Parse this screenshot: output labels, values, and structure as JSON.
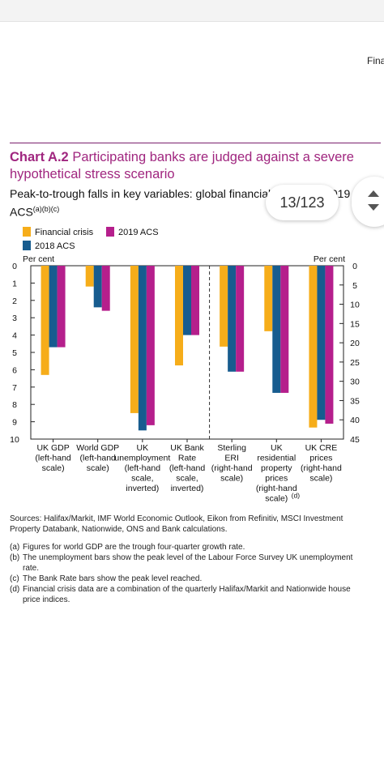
{
  "header_crop_text": "Fina",
  "title": {
    "prefix": "Chart A.2",
    "text": "Participating banks are judged against a severe hypothetical stress scenario"
  },
  "subtitle": {
    "text": "Peak-to-trough falls in key variables: global financial crisis and 2019 ACS",
    "notes": "(a)(b)(c)"
  },
  "page_indicator": "13/123",
  "colors": {
    "financial_crisis": "#f6ad1a",
    "acs_2018": "#175c8f",
    "acs_2019": "#b51f8c",
    "title": "#a0267f"
  },
  "chart_data": {
    "type": "bar",
    "legend": [
      "Financial crisis",
      "2019 ACS",
      "2018 ACS"
    ],
    "left_axis": {
      "label": "Per cent",
      "ticks": [
        "0",
        "1",
        "2",
        "3",
        "4",
        "5",
        "6",
        "7",
        "8",
        "9",
        "10"
      ],
      "range": [
        0,
        10
      ],
      "inverted": true
    },
    "right_axis": {
      "label": "Per cent",
      "ticks": [
        "0",
        "5",
        "10",
        "15",
        "20",
        "25",
        "30",
        "35",
        "40",
        "45"
      ],
      "range": [
        0,
        45
      ],
      "inverted": true
    },
    "categories": [
      {
        "label": [
          "UK GDP",
          "(left-hand",
          "scale)"
        ],
        "axis": "left",
        "sup": "",
        "values": {
          "fc": 6.3,
          "acs2018": 4.7,
          "acs2019": 4.7
        }
      },
      {
        "label": [
          "World GDP",
          "(left-hand",
          "scale)"
        ],
        "axis": "left",
        "sup": "",
        "values": {
          "fc": 1.2,
          "acs2018": 2.4,
          "acs2019": 2.6
        }
      },
      {
        "label": [
          "UK",
          "unemployment",
          "(left-hand",
          "scale,",
          "inverted)"
        ],
        "axis": "left",
        "sup": "",
        "values": {
          "fc": 8.5,
          "acs2018": 9.5,
          "acs2019": 9.2
        }
      },
      {
        "label": [
          "UK Bank",
          "Rate",
          "(left-hand",
          "scale,",
          "inverted)"
        ],
        "axis": "left",
        "sup": "",
        "values": {
          "fc": 5.75,
          "acs2018": 4.0,
          "acs2019": 4.0
        }
      },
      {
        "label": [
          "Sterling",
          "ERI",
          "(right-hand",
          "scale)"
        ],
        "axis": "right",
        "sup": "",
        "values": {
          "fc": 21.0,
          "acs2018": 27.5,
          "acs2019": 27.5
        }
      },
      {
        "label": [
          "UK",
          "residential",
          "property",
          "prices",
          "(right-hand",
          "scale)"
        ],
        "axis": "right",
        "sup": "(d)",
        "values": {
          "fc": 17.0,
          "acs2018": 33.0,
          "acs2019": 33.0
        }
      },
      {
        "label": [
          "UK CRE",
          "prices",
          "(right-hand",
          "scale)"
        ],
        "axis": "right",
        "sup": "",
        "values": {
          "fc": 42.0,
          "acs2018": 40.0,
          "acs2019": 41.0
        }
      }
    ]
  },
  "sources": "Sources: Halifax/Markit, IMF World Economic Outlook, Eikon from Refinitiv, MSCI Investment Property Databank, Nationwide, ONS and Bank calculations.",
  "footnotes": [
    {
      "key": "(a)",
      "text": "Figures for world GDP are the trough four-quarter growth rate."
    },
    {
      "key": "(b)",
      "text": "The unemployment bars show the peak level of the Labour Force Survey UK unemployment rate."
    },
    {
      "key": "(c)",
      "text": "The Bank Rate bars show the peak level reached."
    },
    {
      "key": "(d)",
      "text": "Financial crisis data are a combination of the quarterly Halifax/Markit and Nationwide house price indices."
    }
  ]
}
